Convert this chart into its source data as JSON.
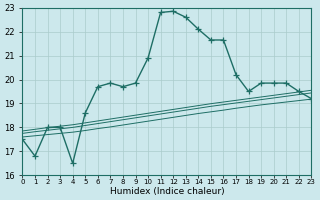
{
  "x": [
    0,
    1,
    2,
    3,
    4,
    5,
    6,
    7,
    8,
    9,
    10,
    11,
    12,
    13,
    14,
    15,
    16,
    17,
    18,
    19,
    20,
    21,
    22,
    23
  ],
  "y_main": [
    17.5,
    16.8,
    18.0,
    18.0,
    16.5,
    18.6,
    19.7,
    19.85,
    19.7,
    19.85,
    20.9,
    22.8,
    22.85,
    22.6,
    22.1,
    21.65,
    21.65,
    20.2,
    19.5,
    19.85,
    19.85,
    19.85,
    19.5,
    19.2
  ],
  "y_trend1": [
    17.6,
    17.65,
    17.7,
    17.75,
    17.8,
    17.87,
    17.95,
    18.02,
    18.1,
    18.18,
    18.26,
    18.34,
    18.42,
    18.5,
    18.58,
    18.65,
    18.72,
    18.8,
    18.87,
    18.94,
    19.0,
    19.06,
    19.12,
    19.18
  ],
  "y_trend2": [
    17.75,
    17.82,
    17.88,
    17.94,
    18.0,
    18.08,
    18.16,
    18.24,
    18.32,
    18.4,
    18.48,
    18.56,
    18.64,
    18.72,
    18.8,
    18.88,
    18.95,
    19.02,
    19.09,
    19.16,
    19.23,
    19.3,
    19.37,
    19.44
  ],
  "y_trend3": [
    17.85,
    17.92,
    17.99,
    18.05,
    18.11,
    18.19,
    18.27,
    18.35,
    18.43,
    18.51,
    18.59,
    18.67,
    18.75,
    18.83,
    18.91,
    18.99,
    19.06,
    19.13,
    19.2,
    19.27,
    19.34,
    19.41,
    19.48,
    19.55
  ],
  "bg_color": "#cce8ec",
  "grid_color": "#aacccc",
  "line_color": "#1e6e65",
  "ylim": [
    16,
    23
  ],
  "xlim": [
    0,
    23
  ],
  "yticks": [
    16,
    17,
    18,
    19,
    20,
    21,
    22,
    23
  ],
  "xtick_labels": [
    "0",
    "1",
    "2",
    "3",
    "4",
    "5",
    "6",
    "7",
    "8",
    "9",
    "10",
    "11",
    "12",
    "13",
    "14",
    "15",
    "16",
    "17",
    "18",
    "19",
    "20",
    "21",
    "22",
    "23"
  ],
  "xlabel": "Humidex (Indice chaleur)",
  "marker": "+",
  "markersize": 4,
  "linewidth": 1.0
}
